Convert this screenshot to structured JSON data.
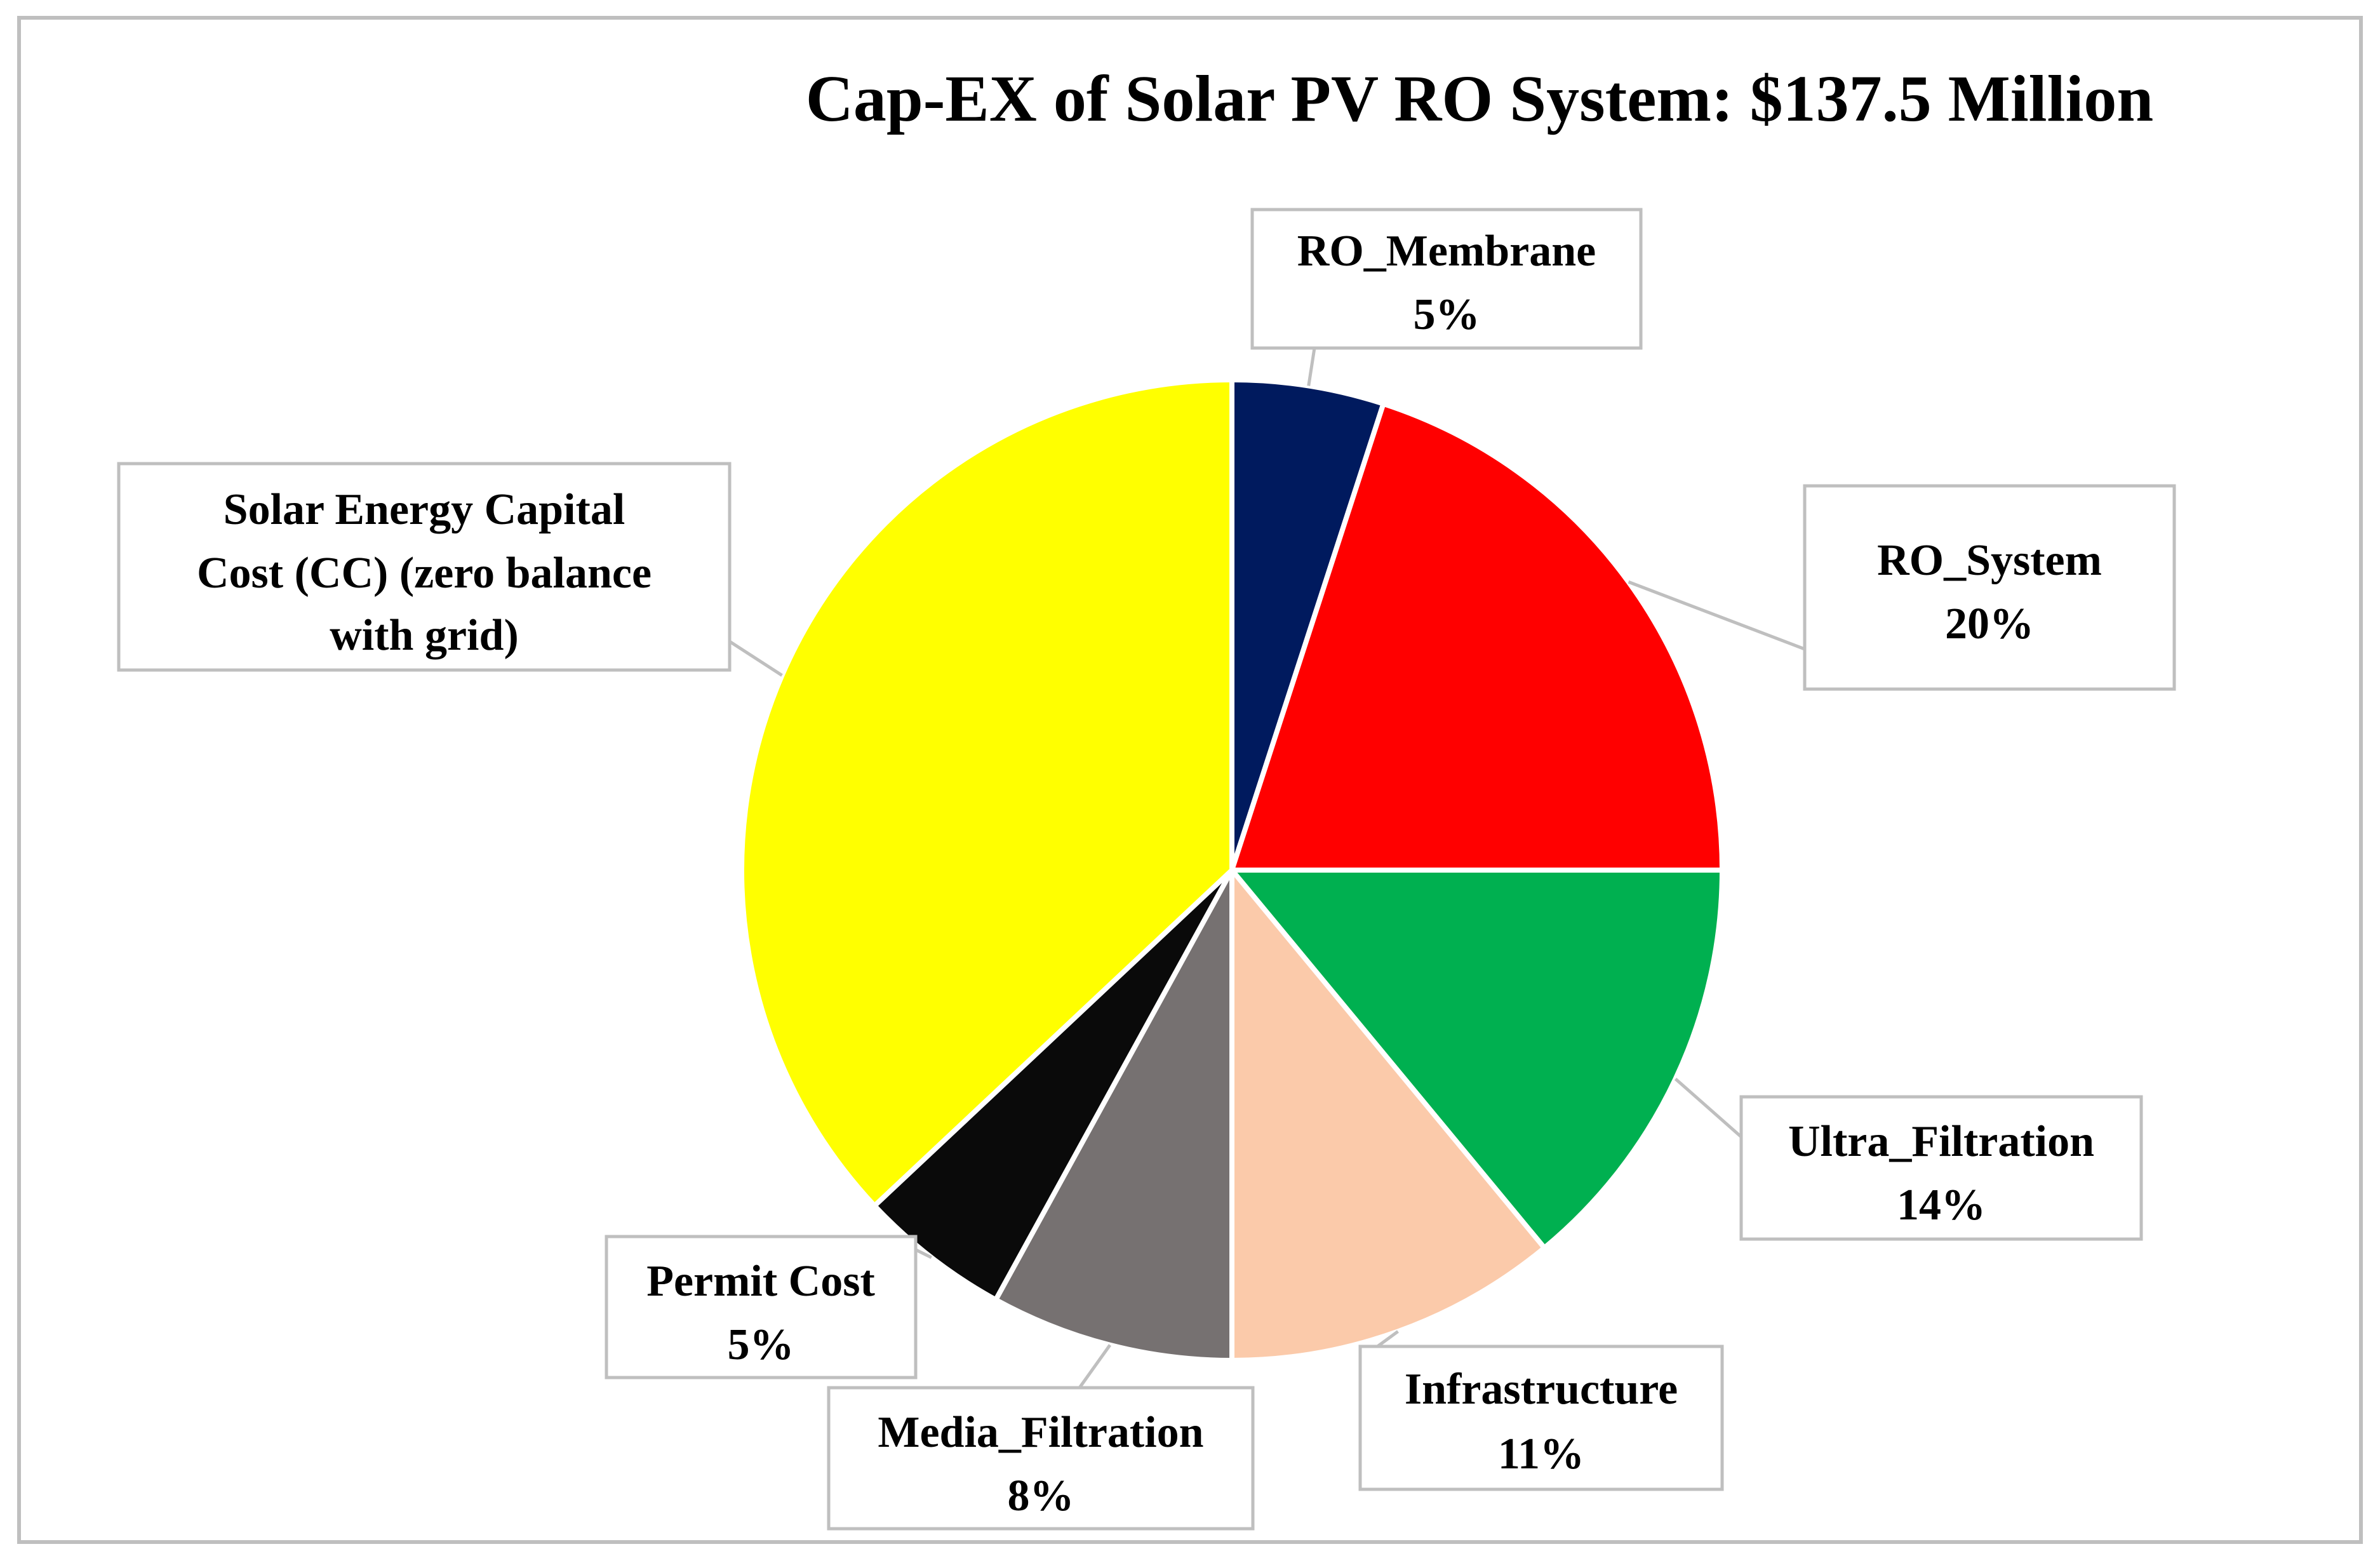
{
  "chart_data": {
    "type": "pie",
    "title": "Cap-EX of Solar PV RO System: $137.5 Million",
    "start_angle_deg": 0,
    "direction": "clockwise",
    "slices": [
      {
        "label": "RO_Membrane",
        "value": 5,
        "value_label": "5%",
        "color": "#001A5E"
      },
      {
        "label": "RO_System",
        "value": 20,
        "value_label": "20%",
        "color": "#FF0000"
      },
      {
        "label": "Ultra_Filtration",
        "value": 14,
        "value_label": "14%",
        "color": "#00B050"
      },
      {
        "label": "Infrastructure",
        "value": 11,
        "value_label": "11%",
        "color": "#FBCAAA"
      },
      {
        "label": "Media_Filtration",
        "value": 8,
        "value_label": "8%",
        "color": "#767171"
      },
      {
        "label": "Permit Cost",
        "value": 5,
        "value_label": "5%",
        "color": "#0A0A0A"
      },
      {
        "label": "Solar Energy Capital Cost (CC) (zero balance with grid)",
        "value": 37,
        "value_label": "",
        "color": "#FFFF00"
      }
    ],
    "solar_label_lines": [
      "Solar Energy Capital",
      "Cost (CC) (zero balance",
      "with grid)"
    ]
  }
}
